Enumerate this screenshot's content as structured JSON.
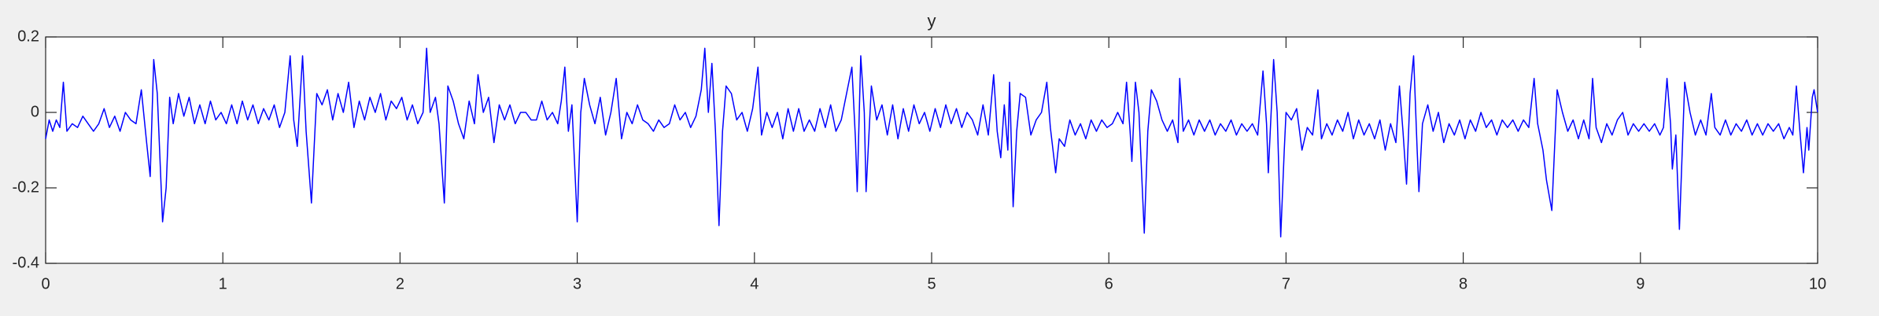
{
  "chart_data": {
    "type": "line",
    "title": "y",
    "x": [
      0.0,
      0.02,
      0.04,
      0.06,
      0.08,
      0.1,
      0.12,
      0.15,
      0.18,
      0.21,
      0.24,
      0.27,
      0.3,
      0.33,
      0.36,
      0.39,
      0.42,
      0.45,
      0.48,
      0.51,
      0.54,
      0.57,
      0.59,
      0.61,
      0.63,
      0.66,
      0.68,
      0.7,
      0.72,
      0.75,
      0.78,
      0.81,
      0.84,
      0.87,
      0.9,
      0.93,
      0.96,
      0.99,
      1.02,
      1.05,
      1.08,
      1.11,
      1.14,
      1.17,
      1.2,
      1.23,
      1.26,
      1.29,
      1.32,
      1.35,
      1.38,
      1.4,
      1.42,
      1.45,
      1.47,
      1.5,
      1.53,
      1.56,
      1.59,
      1.62,
      1.65,
      1.68,
      1.71,
      1.74,
      1.77,
      1.8,
      1.83,
      1.86,
      1.89,
      1.92,
      1.95,
      1.98,
      2.01,
      2.04,
      2.07,
      2.1,
      2.13,
      2.15,
      2.17,
      2.2,
      2.22,
      2.25,
      2.27,
      2.3,
      2.33,
      2.36,
      2.39,
      2.42,
      2.44,
      2.47,
      2.5,
      2.53,
      2.56,
      2.59,
      2.62,
      2.65,
      2.68,
      2.71,
      2.74,
      2.77,
      2.8,
      2.83,
      2.86,
      2.89,
      2.91,
      2.93,
      2.95,
      2.97,
      3.0,
      3.02,
      3.04,
      3.07,
      3.1,
      3.13,
      3.16,
      3.19,
      3.22,
      3.25,
      3.28,
      3.31,
      3.34,
      3.37,
      3.4,
      3.43,
      3.46,
      3.49,
      3.52,
      3.55,
      3.58,
      3.61,
      3.64,
      3.67,
      3.7,
      3.72,
      3.74,
      3.76,
      3.78,
      3.8,
      3.82,
      3.84,
      3.87,
      3.9,
      3.93,
      3.96,
      3.99,
      4.02,
      4.04,
      4.07,
      4.1,
      4.13,
      4.16,
      4.19,
      4.22,
      4.25,
      4.28,
      4.31,
      4.34,
      4.37,
      4.4,
      4.43,
      4.46,
      4.49,
      4.52,
      4.55,
      4.57,
      4.58,
      4.6,
      4.62,
      4.63,
      4.66,
      4.69,
      4.72,
      4.75,
      4.78,
      4.81,
      4.84,
      4.87,
      4.9,
      4.93,
      4.96,
      4.99,
      5.02,
      5.05,
      5.08,
      5.11,
      5.14,
      5.17,
      5.2,
      5.23,
      5.26,
      5.29,
      5.32,
      5.35,
      5.37,
      5.39,
      5.41,
      5.43,
      5.44,
      5.46,
      5.48,
      5.5,
      5.53,
      5.56,
      5.59,
      5.62,
      5.65,
      5.67,
      5.7,
      5.72,
      5.75,
      5.78,
      5.81,
      5.84,
      5.87,
      5.9,
      5.93,
      5.96,
      5.99,
      6.02,
      6.05,
      6.08,
      6.1,
      6.12,
      6.13,
      6.15,
      6.17,
      6.2,
      6.22,
      6.24,
      6.27,
      6.3,
      6.33,
      6.36,
      6.39,
      6.4,
      6.42,
      6.45,
      6.48,
      6.51,
      6.54,
      6.57,
      6.6,
      6.63,
      6.66,
      6.69,
      6.72,
      6.75,
      6.78,
      6.81,
      6.84,
      6.87,
      6.89,
      6.9,
      6.93,
      6.95,
      6.97,
      6.99,
      7.0,
      7.03,
      7.06,
      7.09,
      7.12,
      7.15,
      7.18,
      7.2,
      7.23,
      7.26,
      7.29,
      7.32,
      7.35,
      7.38,
      7.41,
      7.44,
      7.47,
      7.5,
      7.53,
      7.56,
      7.59,
      7.62,
      7.64,
      7.66,
      7.68,
      7.7,
      7.72,
      7.74,
      7.75,
      7.77,
      7.8,
      7.83,
      7.86,
      7.89,
      7.92,
      7.95,
      7.98,
      8.01,
      8.04,
      8.07,
      8.1,
      8.13,
      8.16,
      8.19,
      8.22,
      8.25,
      8.28,
      8.31,
      8.34,
      8.37,
      8.4,
      8.42,
      8.45,
      8.47,
      8.5,
      8.53,
      8.56,
      8.59,
      8.62,
      8.65,
      8.68,
      8.71,
      8.73,
      8.75,
      8.78,
      8.81,
      8.84,
      8.87,
      8.9,
      8.93,
      8.96,
      8.99,
      9.02,
      9.05,
      9.08,
      9.11,
      9.13,
      9.15,
      9.17,
      9.18,
      9.2,
      9.22,
      9.24,
      9.25,
      9.28,
      9.31,
      9.34,
      9.37,
      9.4,
      9.42,
      9.45,
      9.48,
      9.51,
      9.54,
      9.57,
      9.6,
      9.63,
      9.66,
      9.69,
      9.72,
      9.75,
      9.78,
      9.81,
      9.84,
      9.86,
      9.88,
      9.9,
      9.92,
      9.94,
      9.95,
      9.97,
      9.98,
      10.0
    ],
    "series": [
      {
        "color": "#0000ff",
        "values": [
          -0.07,
          -0.02,
          -0.05,
          -0.02,
          -0.04,
          0.08,
          -0.05,
          -0.03,
          -0.04,
          -0.01,
          -0.03,
          -0.05,
          -0.03,
          0.01,
          -0.04,
          -0.01,
          -0.05,
          0.0,
          -0.02,
          -0.03,
          0.06,
          -0.08,
          -0.17,
          0.14,
          0.05,
          -0.29,
          -0.2,
          0.04,
          -0.03,
          0.05,
          -0.01,
          0.04,
          -0.03,
          0.02,
          -0.03,
          0.03,
          -0.02,
          0.0,
          -0.03,
          0.02,
          -0.03,
          0.03,
          -0.02,
          0.02,
          -0.03,
          0.01,
          -0.02,
          0.02,
          -0.04,
          0.0,
          0.15,
          -0.02,
          -0.09,
          0.15,
          -0.05,
          -0.24,
          0.05,
          0.02,
          0.06,
          -0.02,
          0.05,
          0.0,
          0.08,
          -0.04,
          0.03,
          -0.02,
          0.04,
          0.0,
          0.05,
          -0.02,
          0.03,
          0.01,
          0.04,
          -0.02,
          0.02,
          -0.03,
          0.0,
          0.17,
          0.0,
          0.04,
          -0.03,
          -0.24,
          0.07,
          0.03,
          -0.03,
          -0.07,
          0.03,
          -0.03,
          0.1,
          0.0,
          0.04,
          -0.08,
          0.02,
          -0.02,
          0.02,
          -0.03,
          0.0,
          0.0,
          -0.02,
          -0.02,
          0.03,
          -0.02,
          0.0,
          -0.03,
          0.03,
          0.12,
          -0.05,
          0.02,
          -0.29,
          0.0,
          0.09,
          0.02,
          -0.03,
          0.04,
          -0.06,
          0.0,
          0.09,
          -0.07,
          0.0,
          -0.03,
          0.02,
          -0.02,
          -0.03,
          -0.05,
          -0.02,
          -0.04,
          -0.03,
          0.02,
          -0.02,
          0.0,
          -0.04,
          -0.01,
          0.06,
          0.17,
          0.0,
          0.13,
          -0.05,
          -0.3,
          -0.05,
          0.07,
          0.05,
          -0.02,
          0.0,
          -0.05,
          0.01,
          0.12,
          -0.06,
          0.0,
          -0.04,
          0.0,
          -0.07,
          0.01,
          -0.05,
          0.01,
          -0.05,
          -0.02,
          -0.05,
          0.01,
          -0.04,
          0.02,
          -0.05,
          -0.02,
          0.05,
          0.12,
          -0.07,
          -0.21,
          0.15,
          0.0,
          -0.21,
          0.07,
          -0.02,
          0.02,
          -0.06,
          0.02,
          -0.07,
          0.01,
          -0.05,
          0.02,
          -0.03,
          0.0,
          -0.05,
          0.01,
          -0.04,
          0.02,
          -0.03,
          0.01,
          -0.04,
          0.0,
          -0.02,
          -0.06,
          0.02,
          -0.06,
          0.1,
          -0.05,
          -0.12,
          0.02,
          -0.1,
          0.08,
          -0.25,
          -0.05,
          0.05,
          0.04,
          -0.06,
          -0.02,
          0.0,
          0.08,
          -0.04,
          -0.16,
          -0.07,
          -0.09,
          -0.02,
          -0.06,
          -0.03,
          -0.07,
          -0.02,
          -0.05,
          -0.02,
          -0.04,
          -0.03,
          0.0,
          -0.03,
          0.08,
          -0.05,
          -0.13,
          0.08,
          0.0,
          -0.32,
          -0.05,
          0.06,
          0.03,
          -0.02,
          -0.05,
          -0.02,
          -0.08,
          0.09,
          -0.05,
          -0.02,
          -0.06,
          -0.02,
          -0.05,
          -0.02,
          -0.06,
          -0.03,
          -0.05,
          -0.02,
          -0.06,
          -0.03,
          -0.05,
          -0.03,
          -0.06,
          0.11,
          -0.03,
          -0.16,
          0.14,
          0.0,
          -0.33,
          -0.1,
          0.0,
          -0.02,
          0.01,
          -0.1,
          -0.04,
          -0.06,
          0.06,
          -0.07,
          -0.03,
          -0.06,
          -0.02,
          -0.05,
          0.0,
          -0.07,
          -0.02,
          -0.06,
          -0.03,
          -0.07,
          -0.02,
          -0.1,
          -0.03,
          -0.08,
          0.07,
          -0.05,
          -0.19,
          0.05,
          0.15,
          -0.1,
          -0.21,
          -0.03,
          0.02,
          -0.05,
          0.0,
          -0.08,
          -0.03,
          -0.06,
          -0.02,
          -0.07,
          -0.02,
          -0.05,
          0.0,
          -0.04,
          -0.02,
          -0.06,
          -0.02,
          -0.04,
          -0.02,
          -0.05,
          -0.02,
          -0.04,
          0.09,
          -0.03,
          -0.1,
          -0.18,
          -0.26,
          0.06,
          0.0,
          -0.05,
          -0.02,
          -0.07,
          -0.02,
          -0.07,
          0.09,
          -0.04,
          -0.08,
          -0.03,
          -0.06,
          -0.02,
          0.0,
          -0.06,
          -0.03,
          -0.05,
          -0.03,
          -0.05,
          -0.03,
          -0.06,
          -0.04,
          0.09,
          -0.03,
          -0.15,
          -0.06,
          -0.31,
          -0.05,
          0.08,
          0.0,
          -0.06,
          -0.02,
          -0.06,
          0.05,
          -0.04,
          -0.06,
          -0.02,
          -0.06,
          -0.03,
          -0.05,
          -0.02,
          -0.06,
          -0.03,
          -0.06,
          -0.03,
          -0.05,
          -0.03,
          -0.07,
          -0.04,
          -0.06,
          0.07,
          -0.05,
          -0.16,
          -0.04,
          -0.1,
          0.04,
          0.06,
          0.0
        ]
      }
    ],
    "xlim": [
      0,
      10
    ],
    "ylim": [
      -0.4,
      0.2
    ],
    "xticks": [
      0,
      1,
      2,
      3,
      4,
      5,
      6,
      7,
      8,
      9,
      10
    ],
    "yticks": [
      -0.4,
      -0.2,
      0,
      0.2
    ]
  }
}
